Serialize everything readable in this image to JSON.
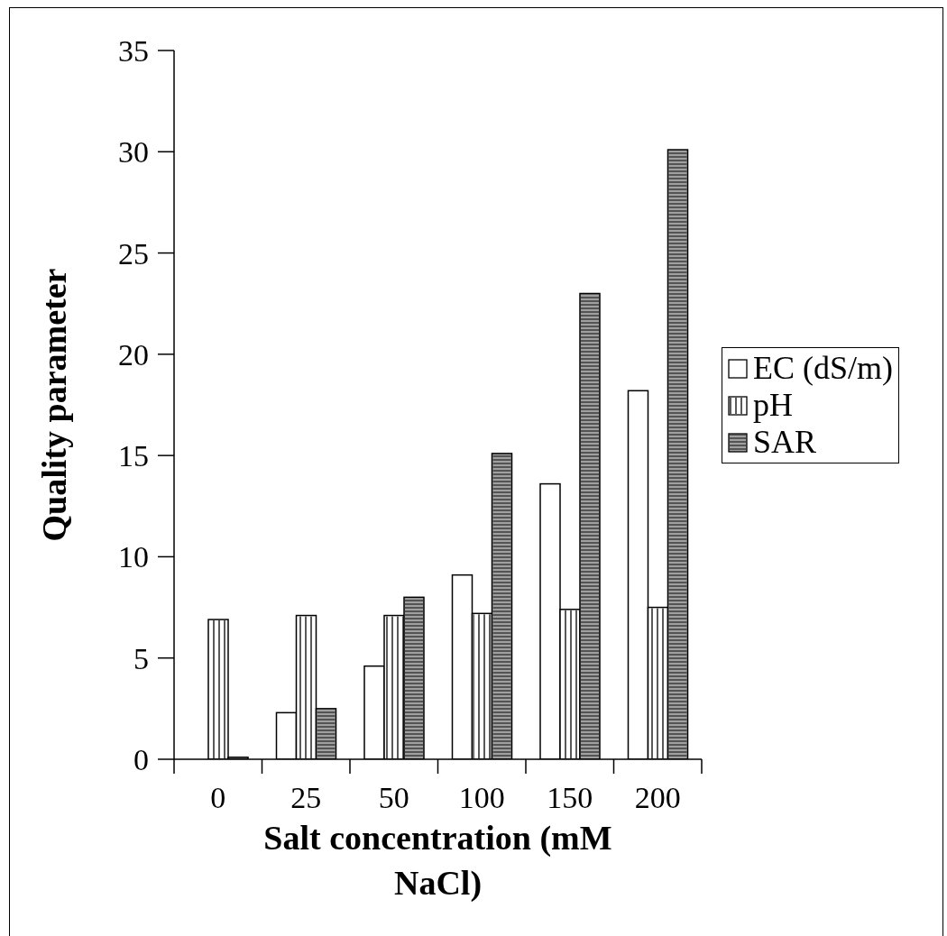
{
  "chart_data": {
    "type": "bar",
    "xlabel": "Salt concentration (mM NaCl)",
    "ylabel": "Quality parameter",
    "categories": [
      "0",
      "25",
      "50",
      "100",
      "150",
      "200"
    ],
    "series": [
      {
        "name": "EC (dS/m)",
        "color": "#ffffff",
        "values": [
          0,
          2.3,
          4.6,
          9.1,
          13.6,
          18.2
        ]
      },
      {
        "name": "pH",
        "color": "#ffffff",
        "values": [
          6.9,
          7.1,
          7.1,
          7.2,
          7.4,
          7.5
        ]
      },
      {
        "name": "SAR",
        "color": "#a0a0a0",
        "values": [
          0.1,
          2.5,
          8.0,
          15.1,
          23.0,
          30.1
        ]
      }
    ],
    "ylim": [
      0,
      35
    ],
    "yticks": [
      0,
      5,
      10,
      15,
      20,
      25,
      30,
      35
    ],
    "grid": false,
    "legend": "right"
  }
}
